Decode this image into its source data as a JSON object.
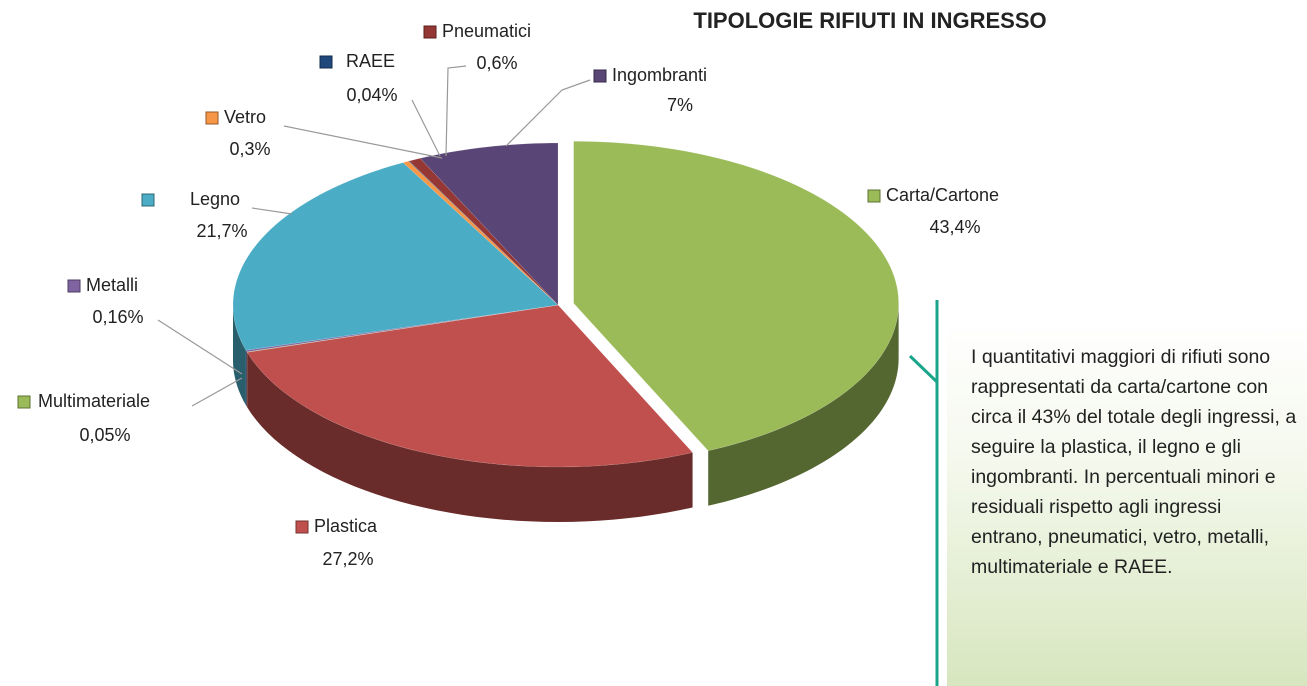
{
  "chart_data": {
    "type": "pie",
    "title": "TIPOLOGIE RIFIUTI IN INGRESSO",
    "categories": [
      "Carta/Cartone",
      "Plastica",
      "Multimateriale",
      "Metalli",
      "Legno",
      "Vetro",
      "RAEE",
      "Pneumatici",
      "Ingombranti"
    ],
    "values": [
      43.4,
      27.2,
      0.05,
      0.16,
      21.7,
      0.3,
      0.04,
      0.6,
      7
    ],
    "value_labels": [
      "43,4%",
      "27,2%",
      "0,05%",
      "0,16%",
      "21,7%",
      "0,3%",
      "0,04%",
      "0,6%",
      "7%"
    ],
    "colors": [
      "#9bbb59",
      "#c0504d",
      "#9bbb59",
      "#8064a2",
      "#4bacc6",
      "#f79646",
      "#1f497d",
      "#953735",
      "#5a4676"
    ],
    "annotation": "I quantitativi maggiori di rifiuti sono rappresentati da carta/cartone con circa il 43% del totale degli ingressi, a seguire la plastica, il legno e gli ingombranti. In percentuali minori e residuali rispetto agli ingressi entrano, pneumatici, vetro, metalli, multimateriale e RAEE."
  }
}
